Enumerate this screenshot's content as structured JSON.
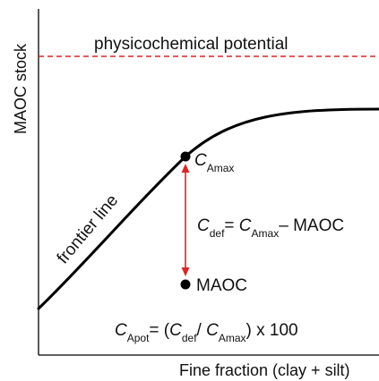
{
  "axes": {
    "xlabel": "Fine fraction (clay + silt)",
    "ylabel": "MAOC stock"
  },
  "potential_line": {
    "label": "physicochemical potential",
    "color": "#d62728"
  },
  "frontier": {
    "label": "frontier line",
    "color": "#000000"
  },
  "points": {
    "camax": {
      "main": "C",
      "sub": "Amax"
    },
    "maoc": {
      "label": "MAOC"
    }
  },
  "deficit": {
    "color": "#d62728",
    "eq_c": "C",
    "eq_def_sub": "def",
    "eq_mid": "= ",
    "eq_c2": "C",
    "eq_amax_sub": "Amax",
    "eq_tail": "– MAOC"
  },
  "apot": {
    "c1": "C",
    "sub1": "Apot",
    "mid1": "= (",
    "c2": "C",
    "sub2": "def",
    "slash": "/ ",
    "c3": "C",
    "sub3": "Amax",
    "tail": ") x 100"
  }
}
